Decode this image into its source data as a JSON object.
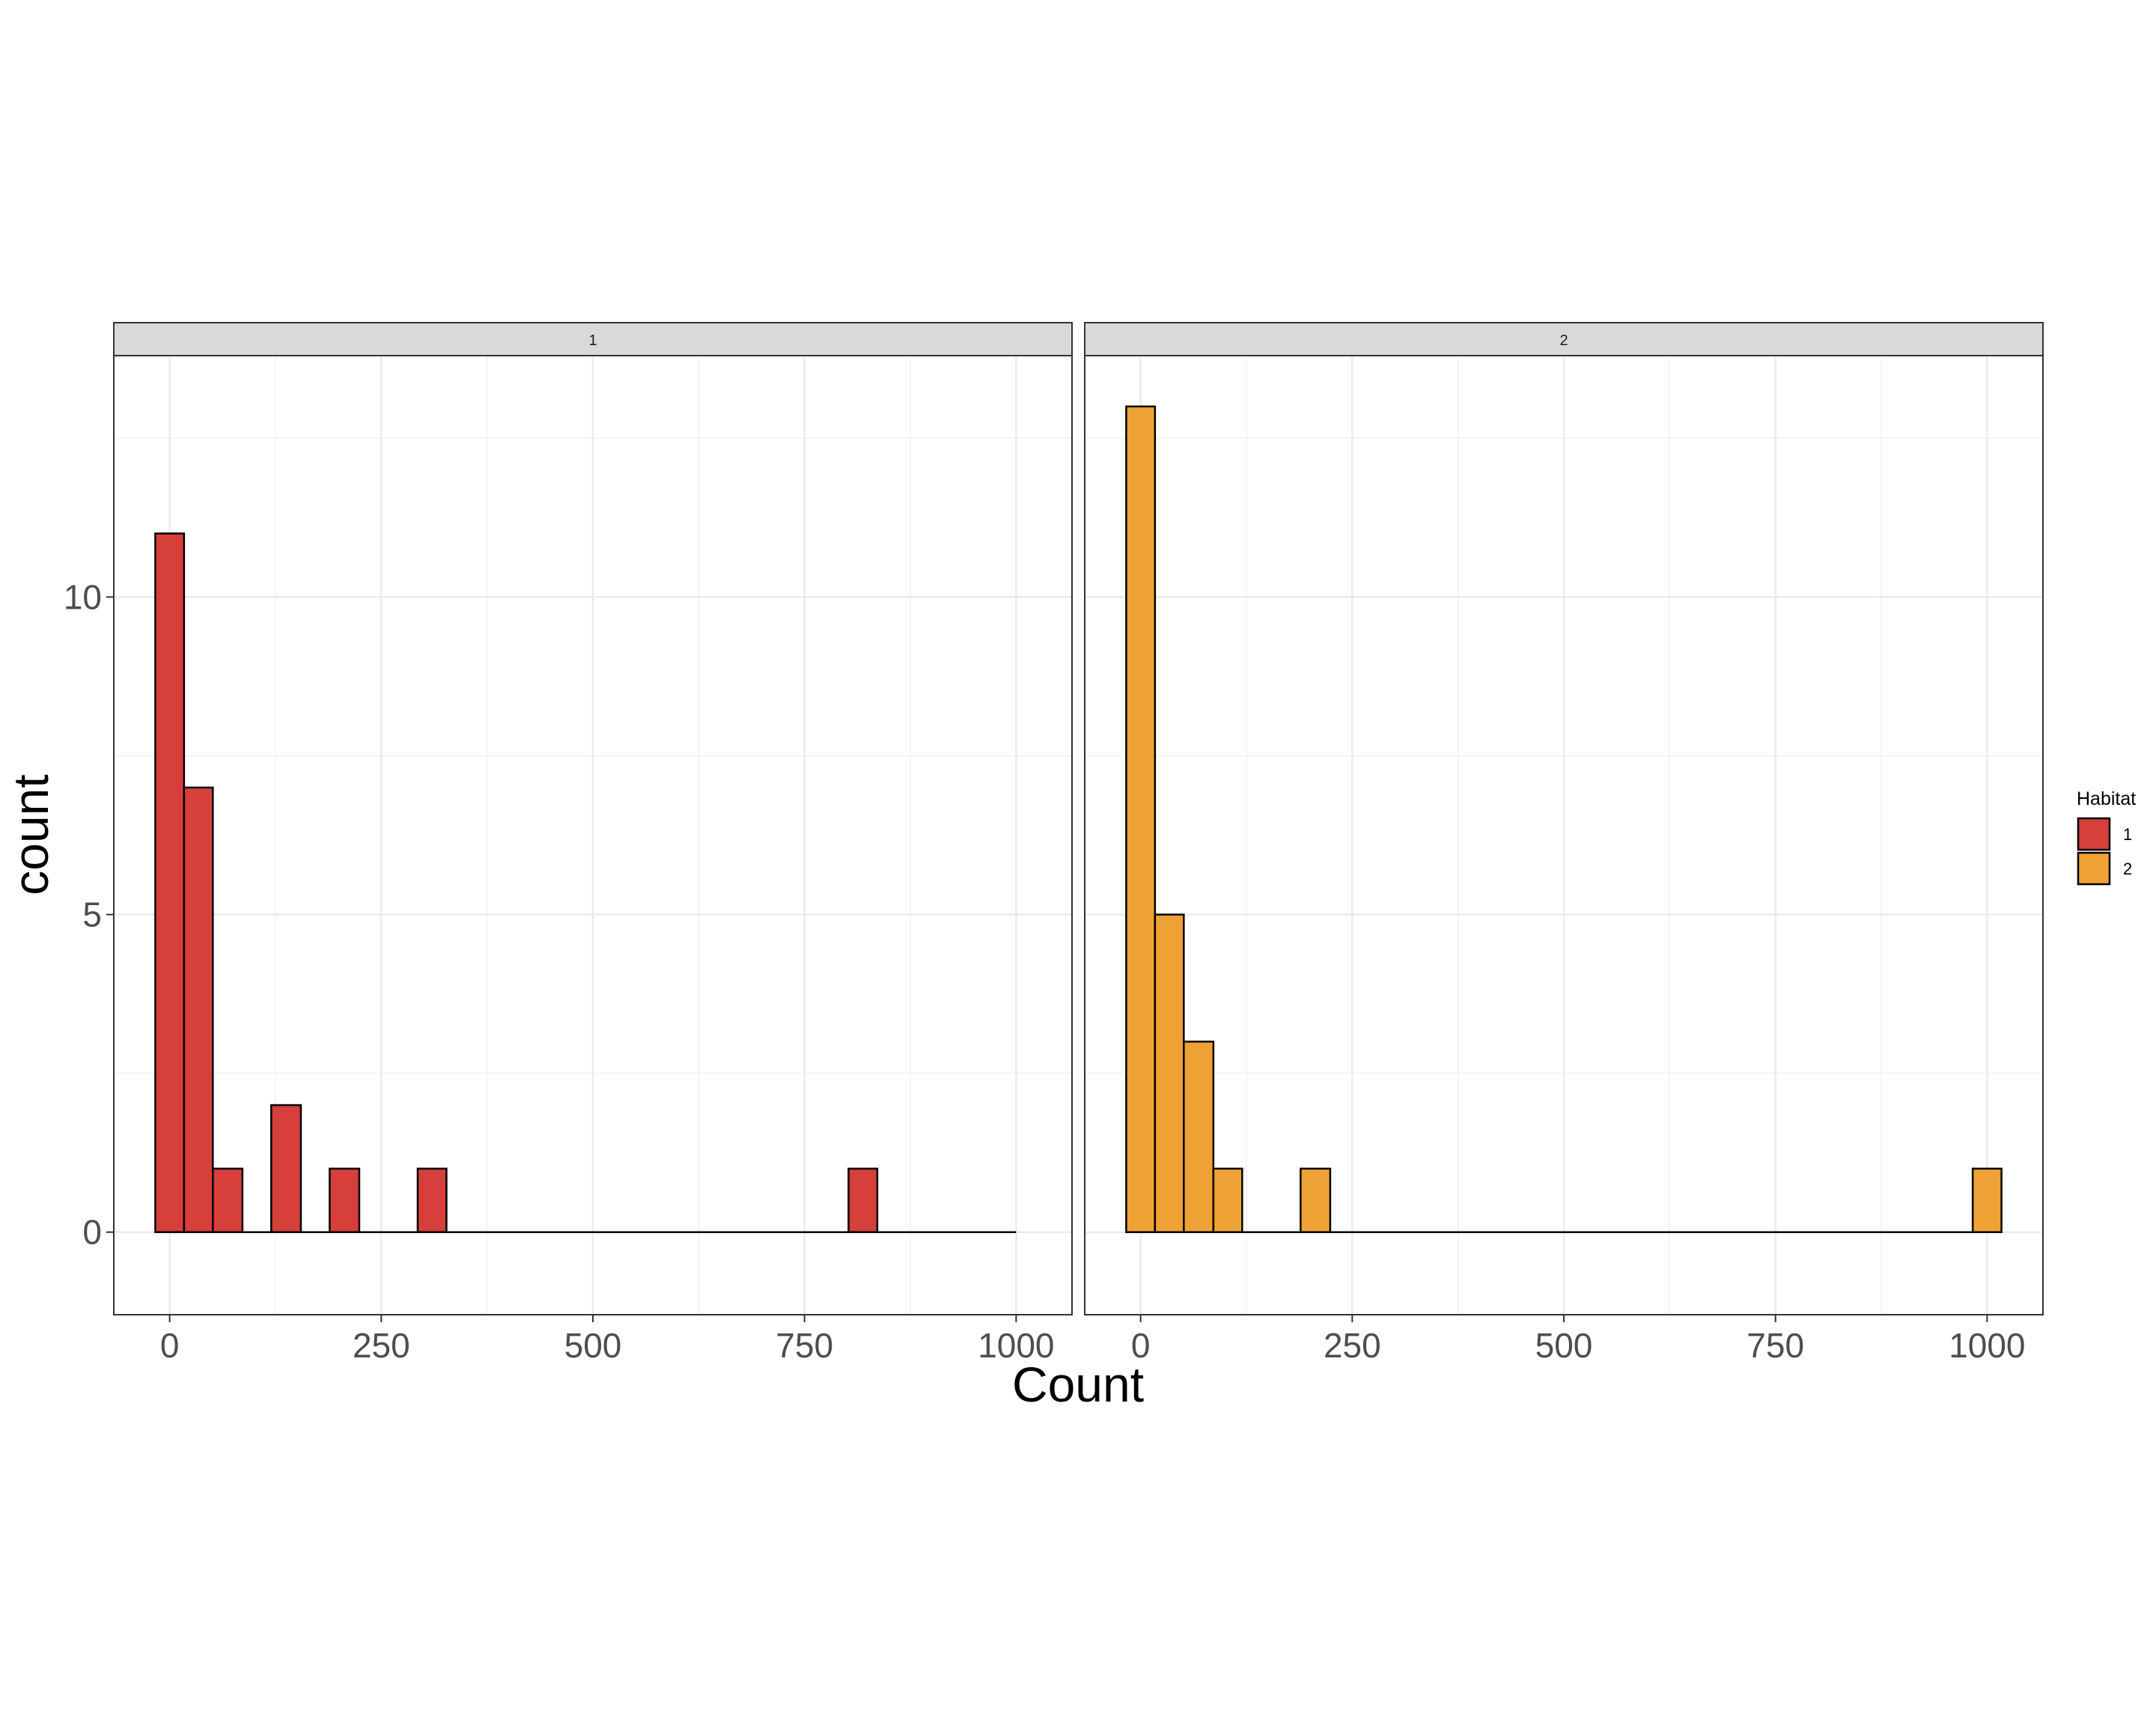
{
  "chart_data": {
    "type": "bar",
    "subtype": "histogram",
    "xlabel": "Count",
    "ylabel": "count",
    "xlim": [
      -66,
      1066
    ],
    "ylim": [
      -1.3,
      13.8
    ],
    "x_ticks": [
      0,
      250,
      500,
      750,
      1000
    ],
    "x_tick_labels": [
      "0",
      "250",
      "500",
      "750",
      "1000"
    ],
    "y_ticks": [
      0,
      5,
      10
    ],
    "y_tick_labels": [
      "0",
      "5",
      "10"
    ],
    "grid": true,
    "bin_width": 34.5,
    "legend": {
      "title": "Habitat",
      "placement": "right",
      "entries": [
        {
          "label": "1",
          "color": "#d63f3a"
        },
        {
          "label": "2",
          "color": "#eea235"
        }
      ]
    },
    "panels": [
      {
        "strip_label": "1",
        "fill": "#d63f3a",
        "x_range": [
          -17,
          1000
        ],
        "bins": [
          {
            "x0": -17,
            "x1": 17,
            "count": 11
          },
          {
            "x0": 17,
            "x1": 51,
            "count": 7
          },
          {
            "x0": 51,
            "x1": 86,
            "count": 1
          },
          {
            "x0": 120,
            "x1": 155,
            "count": 2
          },
          {
            "x0": 189,
            "x1": 224,
            "count": 1
          },
          {
            "x0": 293,
            "x1": 327,
            "count": 1
          },
          {
            "x0": 802,
            "x1": 836,
            "count": 1
          }
        ]
      },
      {
        "strip_label": "2",
        "fill": "#eea235",
        "x_range": [
          -17,
          1000
        ],
        "bins": [
          {
            "x0": -17,
            "x1": 17,
            "count": 13
          },
          {
            "x0": 17,
            "x1": 51,
            "count": 5
          },
          {
            "x0": 51,
            "x1": 86,
            "count": 3
          },
          {
            "x0": 86,
            "x1": 120,
            "count": 1
          },
          {
            "x0": 189,
            "x1": 224,
            "count": 1
          },
          {
            "x0": 983,
            "x1": 1017,
            "count": 1
          }
        ]
      }
    ]
  }
}
